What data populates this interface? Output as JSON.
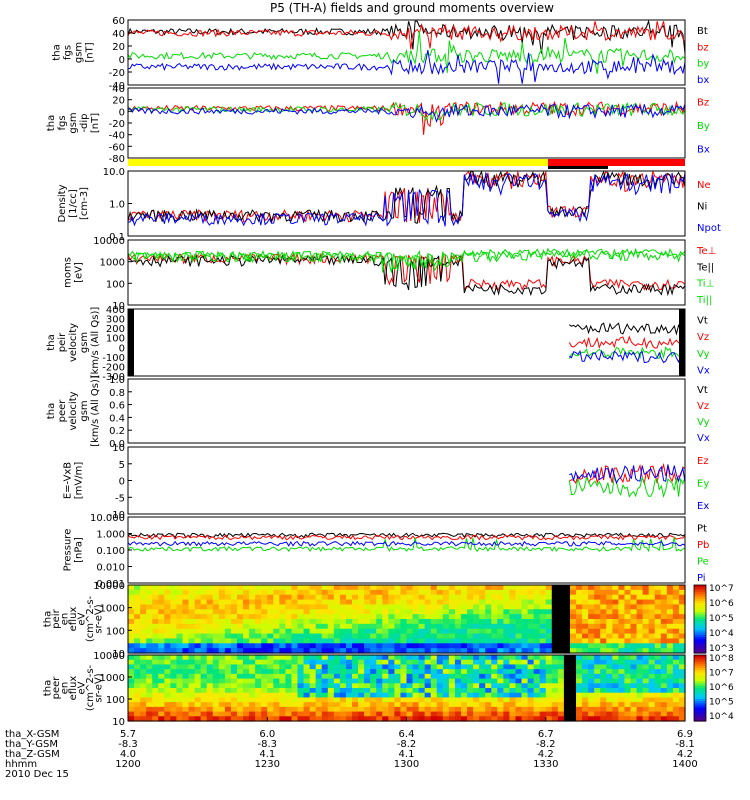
{
  "title": "P5 (TH-A) fields and ground moments overview",
  "time_axis": {
    "ticks": [
      "1200",
      "1230",
      "1300",
      "1330",
      "1400"
    ],
    "date": "2010 Dec 15"
  },
  "ephemeris": {
    "labels": [
      "tha_X-GSM",
      "tha_Y-GSM",
      "tha_Z-GSM",
      "hhmm"
    ],
    "rows": [
      [
        "5.7",
        "6.0",
        "6.4",
        "6.7",
        "6.9"
      ],
      [
        "-8.3",
        "-8.3",
        "-8.2",
        "-8.2",
        "-8.1"
      ],
      [
        "4.0",
        "4.1",
        "4.1",
        "4.2",
        "4.2"
      ],
      [
        "1200",
        "1230",
        "1300",
        "1330",
        "1400"
      ]
    ]
  },
  "colors": {
    "black": "#000000",
    "red": "#ff0000",
    "green": "#00dd00",
    "blue": "#0000ff",
    "yellow": "#ffff00"
  },
  "chart_data": [
    {
      "type": "line",
      "id": "fgs",
      "ylabel": [
        "tha",
        "fgs",
        "gsm",
        "[nT]"
      ],
      "ylim": [
        -40,
        60
      ],
      "yticks": [
        "60",
        "40",
        "20",
        "0",
        "-20",
        "-40"
      ],
      "series": [
        {
          "name": "Bt",
          "color": "#000000"
        },
        {
          "name": "bz",
          "color": "#ff0000"
        },
        {
          "name": "by",
          "color": "#00dd00"
        },
        {
          "name": "bx",
          "color": "#0000ff"
        }
      ]
    },
    {
      "type": "line",
      "id": "fgs-dip",
      "ylabel": [
        "tha",
        "fgs",
        "gsm",
        "-dip",
        "[nT]"
      ],
      "ylim": [
        -90,
        40
      ],
      "yticks": [
        "40",
        "20",
        "0",
        "-20",
        "-40",
        "-60",
        "-80"
      ],
      "series": [
        {
          "name": "Bz",
          "color": "#ff0000"
        },
        {
          "name": "By",
          "color": "#00dd00"
        },
        {
          "name": "Bx",
          "color": "#0000ff"
        }
      ]
    },
    {
      "type": "line",
      "id": "density",
      "ylabel": [
        "Density",
        "[1/cc]",
        "[cm-3]"
      ],
      "scale": "log",
      "ylim": [
        0.1,
        10
      ],
      "yticks": [
        "10.0",
        "1.0",
        "0.1"
      ],
      "series": [
        {
          "name": "Ne",
          "color": "#ff0000"
        },
        {
          "name": "Ni",
          "color": "#000000"
        },
        {
          "name": "Npot",
          "color": "#0000ff"
        }
      ]
    },
    {
      "type": "line",
      "id": "temp",
      "ylabel": [
        "moms",
        "[eV]"
      ],
      "scale": "log",
      "ylim": [
        10,
        10000
      ],
      "yticks": [
        "10000",
        "1000",
        "100",
        "10"
      ],
      "series": [
        {
          "name": "Te⊥",
          "color": "#ff0000"
        },
        {
          "name": "Te||",
          "color": "#000000"
        },
        {
          "name": "Ti⊥",
          "color": "#00dd00"
        },
        {
          "name": "Ti||",
          "color": "#00dd00"
        }
      ]
    },
    {
      "type": "line",
      "id": "peir-vel",
      "ylabel": [
        "tha",
        "peir",
        "velocity",
        "gsm",
        "[km/s (All Qs)]"
      ],
      "ylim": [
        -300,
        400
      ],
      "yticks": [
        "400",
        "300",
        "200",
        "100",
        "0",
        "-100",
        "-200",
        "-300"
      ],
      "series": [
        {
          "name": "Vt",
          "color": "#000000"
        },
        {
          "name": "Vz",
          "color": "#ff0000"
        },
        {
          "name": "Vy",
          "color": "#00dd00"
        },
        {
          "name": "Vx",
          "color": "#0000ff"
        }
      ]
    },
    {
      "type": "line",
      "id": "peer-vel",
      "ylabel": [
        "tha",
        "peer",
        "velocity",
        "gsm",
        "[km/s (All Qs)]"
      ],
      "ylim": [
        0,
        1
      ],
      "yticks": [
        "1.0",
        "0.8",
        "0.6",
        "0.4",
        "0.2",
        "0.0"
      ],
      "series": [
        {
          "name": "Vt",
          "color": "#000000"
        },
        {
          "name": "Vz",
          "color": "#ff0000"
        },
        {
          "name": "Vy",
          "color": "#00dd00"
        },
        {
          "name": "Vx",
          "color": "#0000ff"
        }
      ]
    },
    {
      "type": "line",
      "id": "efield",
      "ylabel": [
        "E=-VxB",
        "[mV/m]"
      ],
      "ylim": [
        -10,
        10
      ],
      "yticks": [
        "10",
        "5",
        "0",
        "-5",
        "-10"
      ],
      "series": [
        {
          "name": "Ez",
          "color": "#ff0000"
        },
        {
          "name": "Ey",
          "color": "#00dd00"
        },
        {
          "name": "Ex",
          "color": "#0000ff"
        }
      ]
    },
    {
      "type": "line",
      "id": "pressure",
      "ylabel": [
        "Pressure",
        "[nPa]"
      ],
      "scale": "log",
      "ylim": [
        0.001,
        10
      ],
      "yticks": [
        "10.000",
        "1.000",
        "0.100",
        "0.010",
        "0.001"
      ],
      "series": [
        {
          "name": "Pt",
          "color": "#000000"
        },
        {
          "name": "Pb",
          "color": "#ff0000"
        },
        {
          "name": "Pe",
          "color": "#00dd00"
        },
        {
          "name": "Pi",
          "color": "#0000ff"
        }
      ]
    },
    {
      "type": "heatmap",
      "id": "peir-spec",
      "ylabel": [
        "tha",
        "peir",
        "en",
        "eflux",
        "eV",
        "(cm^2-s-",
        "sr-eV)"
      ],
      "scale": "log",
      "ylim": [
        10,
        10000
      ],
      "yticks": [
        "10000",
        "1000",
        "100",
        "10"
      ],
      "colorbar": [
        "10^7",
        "10^6",
        "10^5",
        "10^4",
        "10^3"
      ]
    },
    {
      "type": "heatmap",
      "id": "peer-spec",
      "ylabel": [
        "tha",
        "peer",
        "en",
        "eflux",
        "eV",
        "(cm^2-s-",
        "sr-eV)"
      ],
      "scale": "log",
      "ylim": [
        10,
        10000
      ],
      "yticks": [
        "10000",
        "1000",
        "100",
        "10"
      ],
      "colorbar": [
        "10^8",
        "10^7",
        "10^6",
        "10^5",
        "10^4"
      ]
    }
  ]
}
